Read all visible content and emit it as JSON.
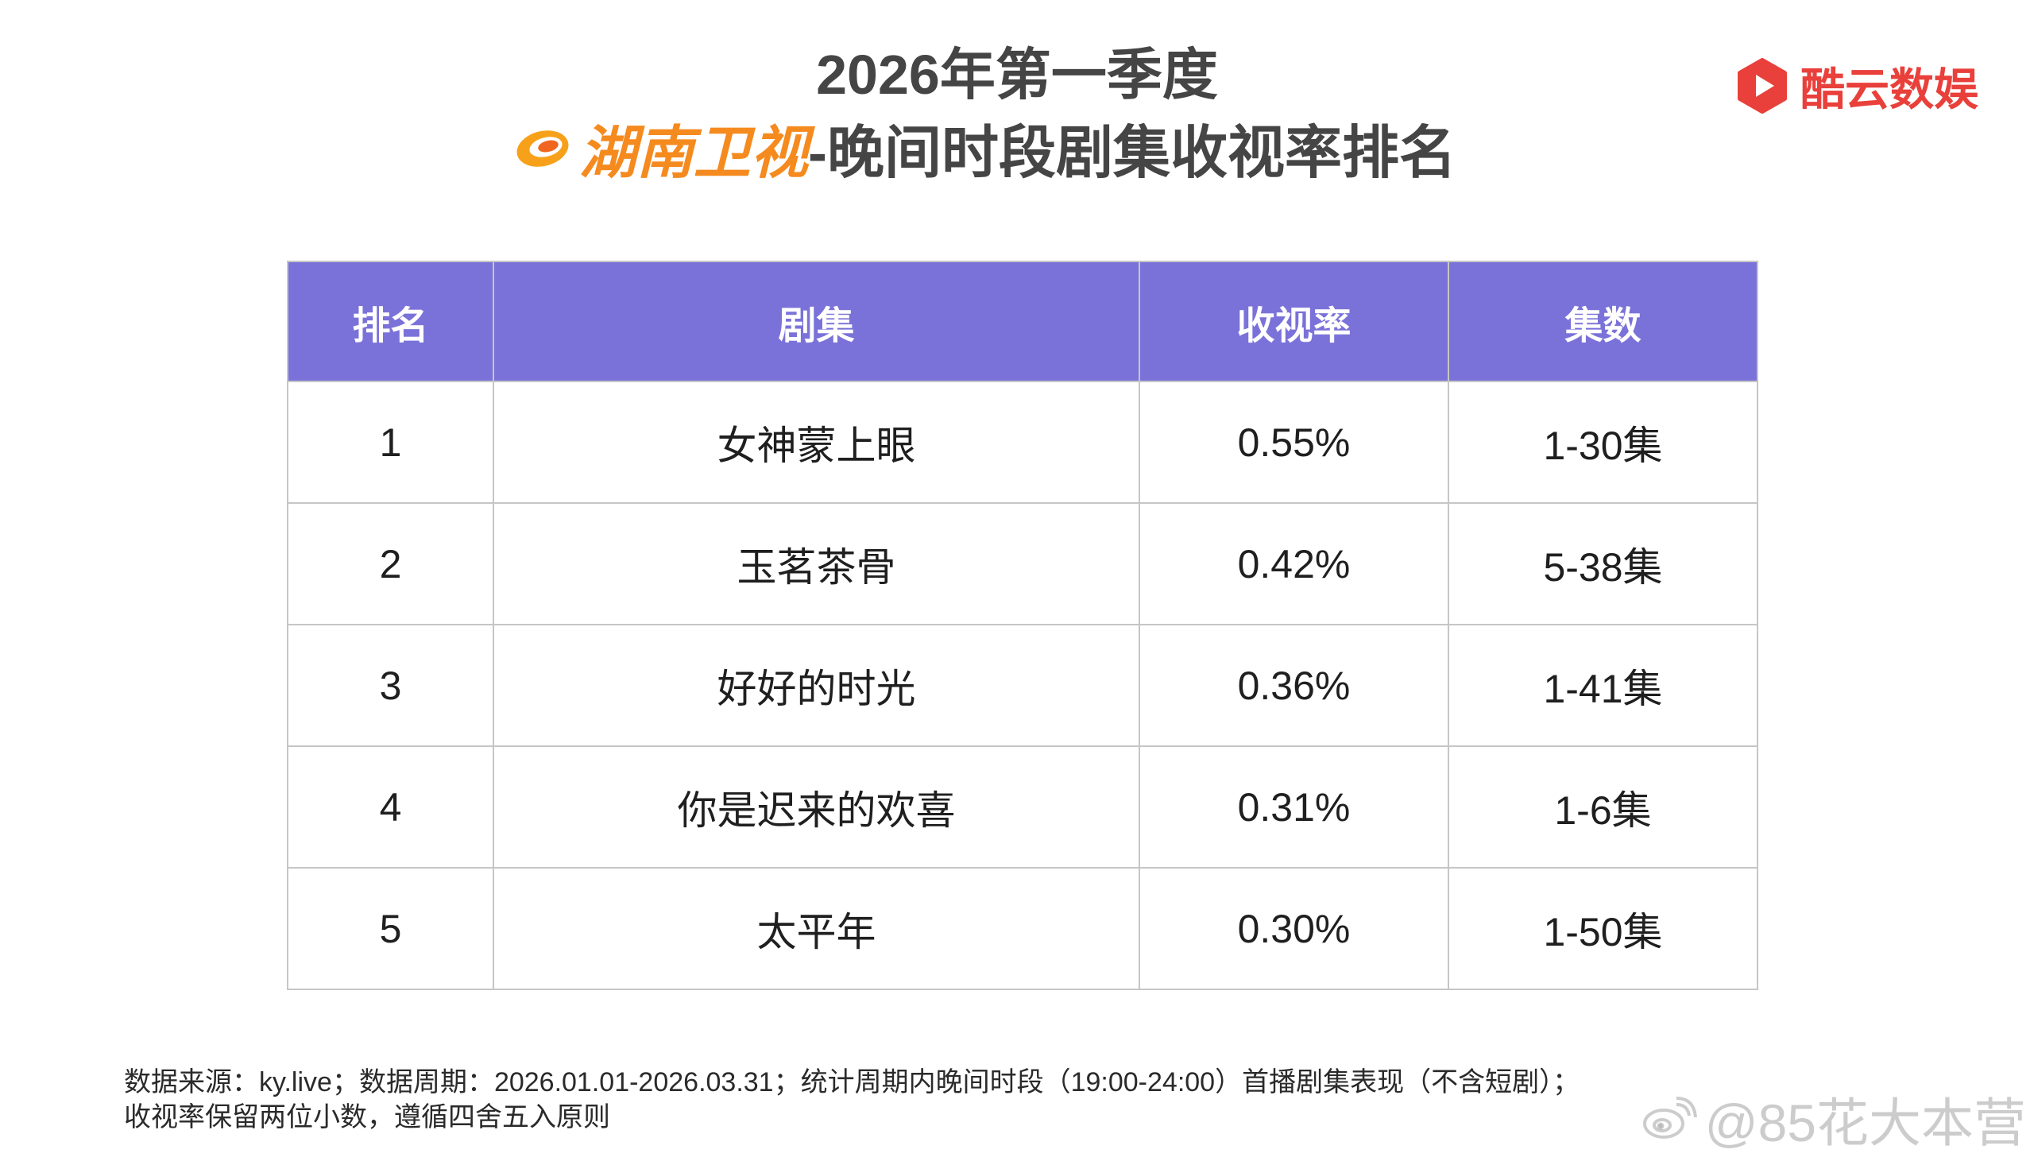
{
  "colors": {
    "header_bg": "#7a72d9",
    "brand_red": "#e9403b",
    "hunan_orange": "#f58a1f",
    "title_text": "#454545"
  },
  "brand": {
    "icon": "kuyun-hexagon-play-icon",
    "name": "酷云数娱"
  },
  "title": {
    "line1": "2026年第一季度",
    "channel_icon": "hunan-tv-logo-icon",
    "channel": "湖南卫视",
    "suffix": "-晚间时段剧集收视率排名"
  },
  "chart_data": {
    "type": "table",
    "columns": [
      "排名",
      "剧集",
      "收视率",
      "集数"
    ],
    "rows": [
      {
        "rank": "1",
        "title": "女神蒙上眼",
        "rating": "0.55%",
        "episodes": "1-30集"
      },
      {
        "rank": "2",
        "title": "玉茗茶骨",
        "rating": "0.42%",
        "episodes": "5-38集"
      },
      {
        "rank": "3",
        "title": "好好的时光",
        "rating": "0.36%",
        "episodes": "1-41集"
      },
      {
        "rank": "4",
        "title": "你是迟来的欢喜",
        "rating": "0.31%",
        "episodes": "1-6集"
      },
      {
        "rank": "5",
        "title": "太平年",
        "rating": "0.30%",
        "episodes": "1-50集"
      }
    ]
  },
  "footer": {
    "line1": "数据来源：ky.live；数据周期：2026.01.01-2026.03.31；统计周期内晚间时段（19:00-24:00）首播剧集表现（不含短剧）；",
    "line2": "收视率保留两位小数，遵循四舍五入原则"
  },
  "watermark": {
    "icon": "weibo-icon",
    "text": "@85花大本营"
  }
}
